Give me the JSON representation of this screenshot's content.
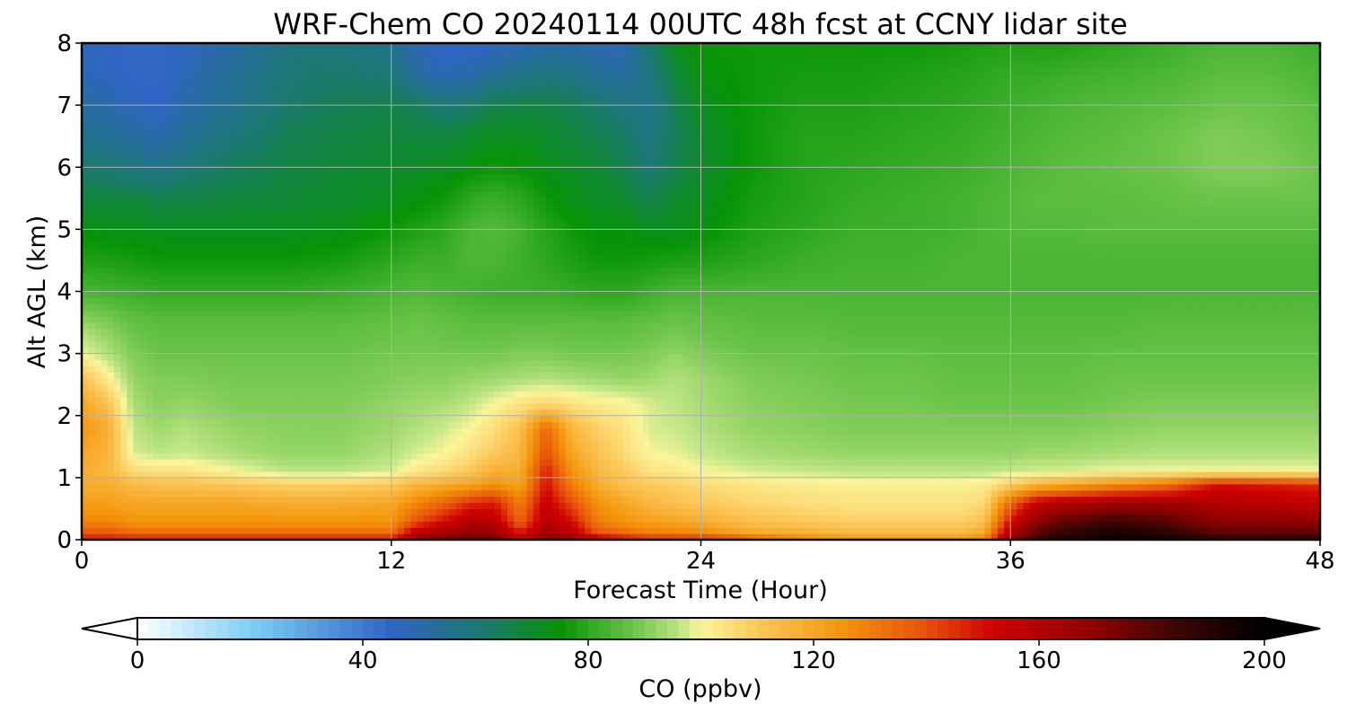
{
  "chart_data": {
    "type": "heatmap",
    "title": "WRF-Chem CO  20240114 00UTC 48h fcst at CCNY lidar site",
    "xlabel": "Forecast Time (Hour)",
    "ylabel": "Alt AGL (km)",
    "xlim": [
      0,
      48
    ],
    "ylim": [
      0,
      8
    ],
    "xticks": [
      0,
      12,
      24,
      36,
      48
    ],
    "yticks": [
      0,
      1,
      2,
      3,
      4,
      5,
      6,
      7,
      8
    ],
    "grid": true,
    "colorbar": {
      "label": "CO  (ppbv)",
      "min": 0,
      "max": 200,
      "ticks": [
        0,
        40,
        80,
        120,
        160,
        200
      ],
      "extend": "both",
      "orientation": "horizontal",
      "colors": [
        {
          "value": 0,
          "color": "#ffffff"
        },
        {
          "value": 20,
          "color": "#7dd0f6"
        },
        {
          "value": 45,
          "color": "#2f64c4"
        },
        {
          "value": 62,
          "color": "#1a7a6a"
        },
        {
          "value": 75,
          "color": "#069406"
        },
        {
          "value": 88,
          "color": "#6bc44a"
        },
        {
          "value": 97,
          "color": "#c8e88a"
        },
        {
          "value": 100,
          "color": "#fbf59a"
        },
        {
          "value": 110,
          "color": "#fcc85a"
        },
        {
          "value": 125,
          "color": "#f4950a"
        },
        {
          "value": 140,
          "color": "#e8500a"
        },
        {
          "value": 152,
          "color": "#d00000"
        },
        {
          "value": 170,
          "color": "#8e0000"
        },
        {
          "value": 185,
          "color": "#3a0505"
        },
        {
          "value": 200,
          "color": "#000000"
        }
      ]
    },
    "grid_data": {
      "x": [
        0,
        1,
        2,
        3,
        4,
        6,
        8,
        10,
        12,
        13,
        14,
        15,
        16,
        17,
        18,
        19,
        20,
        21,
        22,
        23,
        24,
        26,
        28,
        30,
        32,
        34,
        35,
        36,
        37,
        38,
        40,
        42,
        44,
        46,
        48
      ],
      "y": [
        0,
        0.1,
        0.3,
        0.6,
        0.9,
        1.1,
        1.4,
        1.8,
        2.2,
        2.6,
        3.0,
        3.5,
        4.0,
        4.5,
        5.0,
        5.5,
        6.0,
        6.5,
        7.0,
        7.5,
        8.0
      ],
      "z": [
        [
          150,
          150,
          150,
          150,
          150,
          150,
          150,
          150,
          150,
          170,
          178,
          180,
          178,
          160,
          170,
          170,
          160,
          155,
          150,
          150,
          150,
          140,
          130,
          125,
          125,
          125,
          130,
          170,
          185,
          192,
          198,
          195,
          190,
          190,
          190
        ],
        [
          140,
          140,
          135,
          135,
          135,
          135,
          135,
          135,
          135,
          160,
          165,
          170,
          168,
          150,
          165,
          160,
          140,
          135,
          130,
          130,
          128,
          120,
          118,
          115,
          115,
          115,
          120,
          165,
          180,
          188,
          195,
          190,
          180,
          180,
          180
        ],
        [
          128,
          128,
          125,
          125,
          125,
          125,
          125,
          125,
          125,
          140,
          150,
          160,
          158,
          135,
          160,
          150,
          130,
          125,
          122,
          120,
          118,
          112,
          110,
          108,
          108,
          108,
          112,
          150,
          170,
          178,
          185,
          180,
          170,
          170,
          168
        ],
        [
          122,
          122,
          120,
          120,
          120,
          120,
          118,
          118,
          120,
          128,
          135,
          145,
          148,
          130,
          155,
          140,
          125,
          120,
          115,
          112,
          110,
          107,
          105,
          104,
          104,
          104,
          106,
          135,
          155,
          160,
          165,
          165,
          160,
          158,
          155
        ],
        [
          118,
          118,
          114,
          112,
          112,
          110,
          108,
          108,
          110,
          115,
          118,
          120,
          125,
          120,
          150,
          130,
          118,
          112,
          110,
          108,
          106,
          103,
          102,
          101,
          101,
          101,
          102,
          108,
          115,
          118,
          125,
          132,
          150,
          148,
          145
        ],
        [
          118,
          115,
          106,
          104,
          104,
          100,
          96,
          96,
          98,
          103,
          106,
          110,
          118,
          118,
          148,
          125,
          115,
          110,
          104,
          103,
          100,
          98,
          97,
          96,
          96,
          96,
          96,
          97,
          98,
          98,
          100,
          100,
          100,
          100,
          100
        ],
        [
          120,
          116,
          98,
          96,
          97,
          94,
          92,
          92,
          95,
          98,
          100,
          104,
          110,
          115,
          140,
          120,
          112,
          106,
          100,
          99,
          97,
          94,
          93,
          92,
          92,
          92,
          92,
          92,
          93,
          93,
          94,
          95,
          95,
          95,
          95
        ],
        [
          124,
          118,
          96,
          93,
          95,
          92,
          91,
          91,
          93,
          95,
          97,
          100,
          105,
          112,
          135,
          115,
          108,
          104,
          98,
          97,
          95,
          92,
          91,
          90,
          90,
          90,
          90,
          90,
          90,
          90,
          91,
          92,
          92,
          92,
          92
        ],
        [
          120,
          112,
          94,
          91,
          92,
          90,
          90,
          90,
          92,
          93,
          94,
          96,
          100,
          104,
          106,
          104,
          102,
          101,
          98,
          96,
          94,
          91,
          90,
          89,
          89,
          88,
          88,
          88,
          88,
          88,
          89,
          90,
          90,
          90,
          90
        ],
        [
          112,
          102,
          92,
          90,
          90,
          89,
          89,
          89,
          90,
          91,
          91,
          92,
          93,
          94,
          95,
          94,
          93,
          92,
          93,
          95,
          93,
          90,
          89,
          88,
          88,
          87,
          87,
          87,
          87,
          87,
          88,
          88,
          88,
          88,
          88
        ],
        [
          100,
          95,
          90,
          88,
          88,
          88,
          88,
          88,
          89,
          89,
          89,
          89,
          89,
          90,
          90,
          89,
          89,
          89,
          90,
          92,
          90,
          88,
          88,
          87,
          87,
          86,
          86,
          86,
          86,
          86,
          87,
          87,
          87,
          87,
          87
        ],
        [
          92,
          90,
          87,
          86,
          86,
          86,
          86,
          86,
          87,
          88,
          87,
          86,
          86,
          86,
          86,
          86,
          86,
          86,
          87,
          88,
          87,
          86,
          86,
          85,
          85,
          85,
          85,
          85,
          85,
          85,
          85,
          86,
          86,
          86,
          86
        ],
        [
          84,
          83,
          82,
          81,
          81,
          81,
          81,
          82,
          84,
          85,
          84,
          83,
          82,
          82,
          82,
          81,
          80,
          80,
          82,
          84,
          84,
          84,
          84,
          84,
          84,
          84,
          84,
          84,
          84,
          84,
          84,
          84,
          84,
          84,
          84
        ],
        [
          78,
          78,
          77,
          76,
          76,
          76,
          76,
          77,
          80,
          82,
          82,
          84,
          84,
          82,
          80,
          78,
          76,
          76,
          77,
          78,
          78,
          80,
          82,
          83,
          83,
          84,
          84,
          84,
          84,
          84,
          84,
          84,
          84,
          84,
          84
        ],
        [
          74,
          73,
          73,
          72,
          72,
          72,
          72,
          73,
          76,
          78,
          80,
          84,
          85,
          83,
          79,
          76,
          74,
          74,
          72,
          72,
          74,
          78,
          80,
          82,
          82,
          83,
          84,
          85,
          85,
          85,
          86,
          86,
          86,
          86,
          86
        ],
        [
          68,
          68,
          68,
          66,
          67,
          68,
          69,
          70,
          72,
          74,
          76,
          80,
          82,
          80,
          76,
          73,
          71,
          70,
          66,
          70,
          72,
          77,
          79,
          81,
          82,
          83,
          84,
          85,
          86,
          86,
          86,
          87,
          88,
          88,
          88
        ],
        [
          62,
          60,
          58,
          56,
          60,
          64,
          67,
          69,
          70,
          71,
          72,
          74,
          76,
          75,
          73,
          71,
          69,
          66,
          60,
          66,
          70,
          76,
          79,
          80,
          81,
          82,
          83,
          84,
          85,
          86,
          87,
          88,
          90,
          90,
          88
        ],
        [
          56,
          54,
          52,
          50,
          54,
          60,
          65,
          67,
          68,
          68,
          68,
          70,
          72,
          72,
          70,
          68,
          66,
          63,
          58,
          64,
          70,
          76,
          79,
          79,
          80,
          81,
          82,
          83,
          84,
          85,
          86,
          88,
          90,
          89,
          87
        ],
        [
          52,
          50,
          47,
          45,
          50,
          56,
          62,
          65,
          66,
          64,
          60,
          62,
          66,
          67,
          67,
          65,
          62,
          58,
          56,
          65,
          72,
          76,
          78,
          78,
          79,
          80,
          81,
          82,
          83,
          84,
          85,
          86,
          88,
          88,
          86
        ],
        [
          48,
          46,
          44,
          44,
          48,
          54,
          60,
          62,
          60,
          52,
          48,
          50,
          54,
          57,
          59,
          57,
          54,
          52,
          58,
          68,
          74,
          76,
          77,
          77,
          78,
          79,
          80,
          81,
          81,
          82,
          83,
          84,
          86,
          86,
          84
        ],
        [
          46,
          45,
          44,
          44,
          46,
          52,
          58,
          58,
          56,
          48,
          44,
          44,
          46,
          48,
          50,
          50,
          48,
          48,
          62,
          72,
          76,
          76,
          76,
          76,
          76,
          77,
          78,
          78,
          78,
          78,
          80,
          82,
          84,
          84,
          82
        ]
      ]
    }
  }
}
